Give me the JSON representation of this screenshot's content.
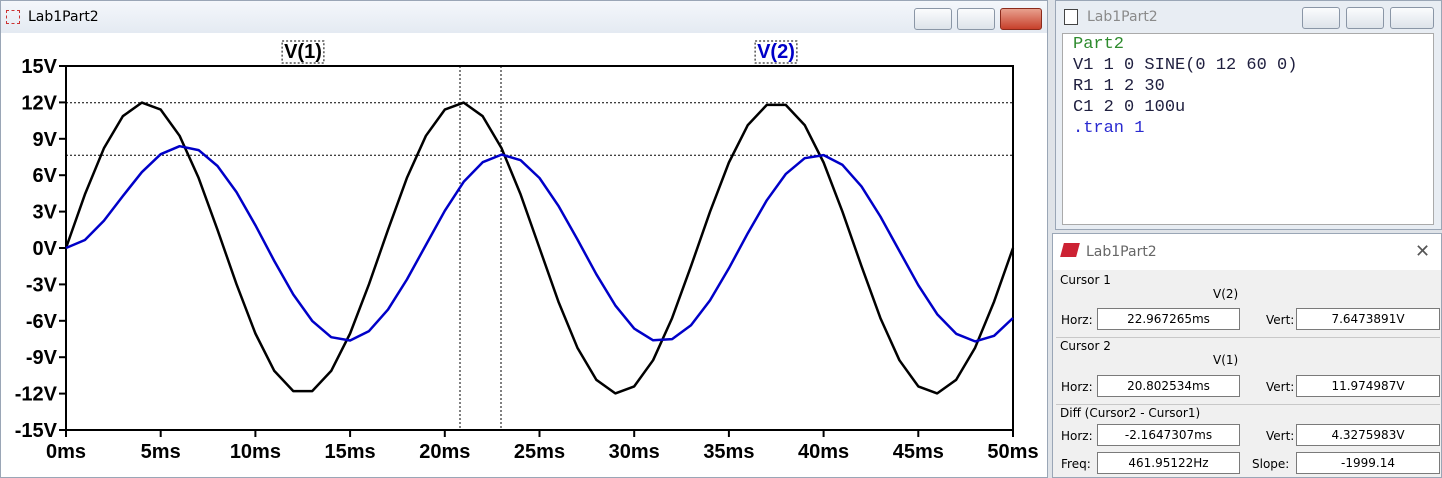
{
  "plot_window": {
    "title": "Lab1Part2"
  },
  "chart_data": {
    "type": "line",
    "x": [
      0,
      1,
      2,
      3,
      4,
      5,
      6,
      7,
      8,
      9,
      10,
      11,
      12,
      13,
      14,
      15,
      16,
      17,
      18,
      19,
      20,
      21,
      22,
      23,
      24,
      25,
      26,
      27,
      28,
      29,
      30,
      31,
      32,
      33,
      34,
      35,
      36,
      37,
      38,
      39,
      40,
      41,
      42,
      43,
      44,
      45,
      46,
      47,
      48,
      49,
      50
    ],
    "series": [
      {
        "name": "V(1)",
        "color": "#000000",
        "values": [
          0,
          4.42,
          8.22,
          10.86,
          11.98,
          11.41,
          9.25,
          5.78,
          1.5,
          -2.98,
          -7.05,
          -10.13,
          -11.79,
          -11.79,
          -10.13,
          -7.05,
          -2.98,
          1.5,
          5.78,
          9.25,
          11.41,
          11.98,
          10.86,
          8.22,
          4.42,
          0,
          -4.42,
          -8.22,
          -10.86,
          -11.98,
          -11.41,
          -9.25,
          -5.78,
          -1.5,
          2.98,
          7.05,
          10.13,
          11.79,
          11.79,
          10.13,
          7.05,
          2.98,
          -1.5,
          -5.78,
          -9.25,
          -11.41,
          -11.98,
          -10.86,
          -8.22,
          -4.42,
          0
        ]
      },
      {
        "name": "V(2)",
        "color": "#0000c8",
        "values": [
          0,
          0.66,
          2.25,
          4.28,
          6.25,
          7.73,
          8.39,
          8.07,
          6.76,
          4.61,
          1.88,
          -1.07,
          -3.83,
          -6.01,
          -7.35,
          -7.62,
          -6.85,
          -5.08,
          -2.6,
          0.25,
          3.07,
          5.46,
          7.07,
          7.7,
          7.24,
          5.77,
          3.48,
          0.71,
          -2.16,
          -4.73,
          -6.64,
          -7.61,
          -7.51,
          -6.36,
          -4.32,
          -1.67,
          1.22,
          3.93,
          6.09,
          7.4,
          7.66,
          6.85,
          5.08,
          2.6,
          -0.25,
          -3.07,
          -5.46,
          -7.07,
          -7.7,
          -7.24,
          -5.77
        ]
      }
    ],
    "xlim": [
      0,
      50
    ],
    "xticks": [
      {
        "value": 0,
        "label": "0ms"
      },
      {
        "value": 5,
        "label": "5ms"
      },
      {
        "value": 10,
        "label": "10ms"
      },
      {
        "value": 15,
        "label": "15ms"
      },
      {
        "value": 20,
        "label": "20ms"
      },
      {
        "value": 25,
        "label": "25ms"
      },
      {
        "value": 30,
        "label": "30ms"
      },
      {
        "value": 35,
        "label": "35ms"
      },
      {
        "value": 40,
        "label": "40ms"
      },
      {
        "value": 45,
        "label": "45ms"
      },
      {
        "value": 50,
        "label": "50ms"
      }
    ],
    "ylim": [
      -15,
      15
    ],
    "yticks": [
      {
        "value": 15,
        "label": "15V"
      },
      {
        "value": 12,
        "label": "12V"
      },
      {
        "value": 9,
        "label": "9V"
      },
      {
        "value": 6,
        "label": "6V"
      },
      {
        "value": 3,
        "label": "3V"
      },
      {
        "value": 0,
        "label": "0V"
      },
      {
        "value": -3,
        "label": "-3V"
      },
      {
        "value": -6,
        "label": "-6V"
      },
      {
        "value": -9,
        "label": "-9V"
      },
      {
        "value": -12,
        "label": "-12V"
      },
      {
        "value": -15,
        "label": "-15V"
      }
    ],
    "cursors": [
      {
        "x": 22.967265,
        "y": 7.6473891
      },
      {
        "x": 20.802534,
        "y": 11.974987
      }
    ]
  },
  "netlist_window": {
    "title": "Lab1Part2",
    "lines": [
      "Part2",
      "V1 1 0 SINE(0 12 60 0)",
      "R1 1 2 30",
      "C1 2 0 100u",
      ".tran 1"
    ]
  },
  "cursor_window": {
    "title": "Lab1Part2",
    "cursor1": {
      "heading": "Cursor 1",
      "trace": "V(2)",
      "horz_label": "Horz:",
      "horz": "22.967265ms",
      "vert_label": "Vert:",
      "vert": "7.6473891V"
    },
    "cursor2": {
      "heading": "Cursor 2",
      "trace": "V(1)",
      "horz_label": "Horz:",
      "horz": "20.802534ms",
      "vert_label": "Vert:",
      "vert": "11.974987V"
    },
    "diff": {
      "heading": "Diff (Cursor2 - Cursor1)",
      "horz_label": "Horz:",
      "horz": "-2.1647307ms",
      "vert_label": "Vert:",
      "vert": "4.3275983V",
      "freq_label": "Freq:",
      "freq": "461.95122Hz",
      "slope_label": "Slope:",
      "slope": "-1999.14"
    }
  }
}
